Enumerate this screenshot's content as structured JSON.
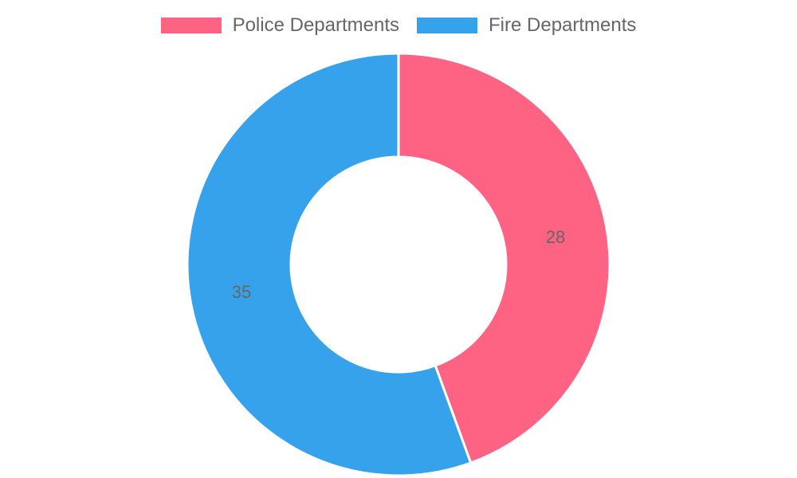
{
  "chart_data": {
    "type": "pie",
    "variant": "doughnut",
    "categories": [
      "Police Departments",
      "Fire Departments"
    ],
    "values": [
      28,
      35
    ],
    "colors": [
      "#ff6384",
      "#36a2eb"
    ],
    "legend_position": "top",
    "data_labels": [
      "28",
      "35"
    ]
  }
}
